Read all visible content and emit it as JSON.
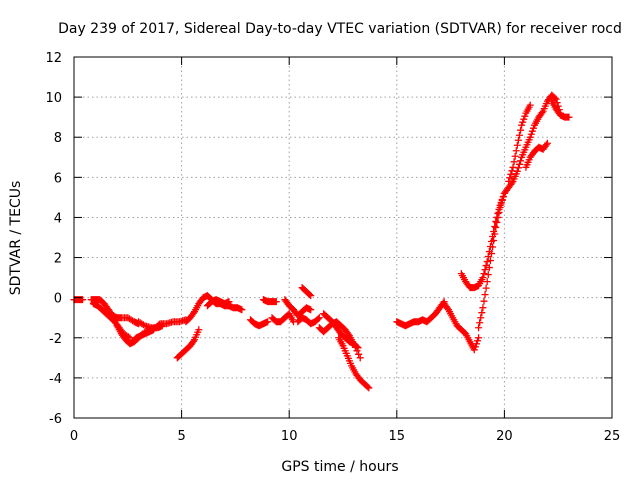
{
  "chart_data": {
    "type": "scatter",
    "title": "Day 239 of 2017, Sidereal Day-to-day VTEC variation (SDTVAR) for receiver rocd",
    "xlabel": "GPS time / hours",
    "ylabel": "SDTVAR / TECUs",
    "xlim": [
      0,
      25
    ],
    "ylim": [
      -6,
      12
    ],
    "xticks": [
      0,
      5,
      10,
      15,
      20,
      25
    ],
    "yticks": [
      -6,
      -4,
      -2,
      0,
      2,
      4,
      6,
      8,
      10,
      12
    ],
    "grid": true,
    "marker": "+",
    "color": "#ff0000",
    "series": [
      {
        "name": "s1",
        "x": [
          0.0,
          0.2,
          0.4
        ],
        "y": [
          -0.1,
          -0.1,
          -0.1
        ]
      },
      {
        "name": "s2",
        "x": [
          0.8,
          1.0,
          1.2,
          1.4,
          1.6,
          1.8,
          2.0,
          2.2,
          2.5,
          2.8,
          3.0
        ],
        "y": [
          -0.1,
          -0.1,
          -0.1,
          -0.3,
          -0.6,
          -0.9,
          -1.0,
          -1.0,
          -1.0,
          -1.2,
          -1.3
        ]
      },
      {
        "name": "s3",
        "x": [
          0.9,
          1.1,
          1.3,
          1.5,
          1.7,
          1.9,
          2.1,
          2.3,
          2.6
        ],
        "y": [
          -0.3,
          -0.4,
          -0.6,
          -0.8,
          -1.0,
          -1.2,
          -1.5,
          -1.8,
          -2.0
        ]
      },
      {
        "name": "s4",
        "x": [
          2.0,
          2.2,
          2.4,
          2.6,
          2.8,
          3.0,
          3.2,
          3.5,
          3.8,
          4.0,
          4.3,
          4.6,
          4.9,
          5.2
        ],
        "y": [
          -1.4,
          -1.8,
          -2.1,
          -2.3,
          -2.2,
          -2.0,
          -1.8,
          -1.6,
          -1.5,
          -1.3,
          -1.3,
          -1.2,
          -1.2,
          -1.1
        ]
      },
      {
        "name": "s5",
        "x": [
          2.7,
          2.9,
          3.1,
          3.3,
          3.5,
          3.7
        ],
        "y": [
          -2.2,
          -2.0,
          -1.9,
          -1.8,
          -1.7,
          -1.6
        ]
      },
      {
        "name": "s6",
        "x": [
          3.0,
          3.3,
          3.6,
          3.9,
          4.1
        ],
        "y": [
          -1.2,
          -1.4,
          -1.5,
          -1.5,
          -1.4
        ]
      },
      {
        "name": "s7",
        "x": [
          4.8,
          5.0,
          5.2,
          5.4,
          5.6,
          5.8
        ],
        "y": [
          -3.0,
          -2.8,
          -2.6,
          -2.4,
          -2.1,
          -1.6
        ]
      },
      {
        "name": "s8",
        "x": [
          5.2,
          5.4,
          5.6,
          5.8,
          6.0,
          6.2,
          6.4,
          6.6,
          6.8,
          7.0,
          7.2,
          7.4,
          7.6,
          7.8
        ],
        "y": [
          -1.2,
          -1.0,
          -0.7,
          -0.3,
          0.0,
          0.1,
          -0.1,
          -0.3,
          -0.3,
          -0.4,
          -0.4,
          -0.5,
          -0.5,
          -0.6
        ]
      },
      {
        "name": "s9",
        "x": [
          6.2,
          6.4,
          6.6,
          6.8,
          7.0,
          7.2
        ],
        "y": [
          -0.4,
          -0.2,
          -0.1,
          -0.2,
          -0.3,
          -0.2
        ]
      },
      {
        "name": "s10",
        "x": [
          8.2,
          8.4,
          8.6,
          8.8,
          9.0
        ],
        "y": [
          -1.1,
          -1.3,
          -1.4,
          -1.3,
          -1.2
        ]
      },
      {
        "name": "s11",
        "x": [
          8.8,
          9.0,
          9.2,
          9.4
        ],
        "y": [
          -0.1,
          -0.2,
          -0.2,
          -0.2
        ]
      },
      {
        "name": "s12",
        "x": [
          9.2,
          9.4,
          9.6,
          9.8,
          10.0,
          10.2
        ],
        "y": [
          -1.0,
          -1.2,
          -1.2,
          -1.0,
          -0.8,
          -1.2
        ]
      },
      {
        "name": "s13",
        "x": [
          9.8,
          10.0,
          10.2,
          10.4,
          10.6,
          10.8,
          11.0
        ],
        "y": [
          -0.1,
          -0.4,
          -0.6,
          -0.9,
          -0.7,
          -0.5,
          -0.6
        ]
      },
      {
        "name": "s14",
        "x": [
          10.6,
          10.8,
          11.0
        ],
        "y": [
          0.5,
          0.3,
          0.1
        ]
      },
      {
        "name": "s15",
        "x": [
          10.4,
          10.6,
          10.8,
          11.0,
          11.2,
          11.4
        ],
        "y": [
          -1.2,
          -1.0,
          -1.1,
          -1.3,
          -1.2,
          -1.0
        ]
      },
      {
        "name": "s16",
        "x": [
          11.4,
          11.6,
          11.8,
          12.0,
          12.2,
          12.4,
          12.6,
          12.8,
          13.0,
          13.3
        ],
        "y": [
          -1.5,
          -1.7,
          -1.5,
          -1.3,
          -1.2,
          -1.4,
          -1.6,
          -1.9,
          -2.3,
          -3.0
        ]
      },
      {
        "name": "s17",
        "x": [
          11.6,
          11.8,
          12.0,
          12.2,
          12.4,
          12.6,
          12.8,
          13.0,
          13.2
        ],
        "y": [
          -0.8,
          -1.0,
          -1.2,
          -1.5,
          -1.8,
          -2.0,
          -2.2,
          -2.3,
          -2.5
        ]
      },
      {
        "name": "s18",
        "x": [
          12.3,
          12.5,
          12.7,
          12.9,
          13.1,
          13.3,
          13.5,
          13.7
        ],
        "y": [
          -2.0,
          -2.4,
          -2.9,
          -3.4,
          -3.8,
          -4.1,
          -4.3,
          -4.5
        ]
      },
      {
        "name": "s19",
        "x": [
          15.0,
          15.2,
          15.4,
          15.6,
          15.8,
          16.0,
          16.2,
          16.4,
          16.6,
          16.8,
          17.0,
          17.2
        ],
        "y": [
          -1.2,
          -1.3,
          -1.4,
          -1.3,
          -1.2,
          -1.2,
          -1.1,
          -1.2,
          -1.0,
          -0.8,
          -0.5,
          -0.2
        ]
      },
      {
        "name": "s20",
        "x": [
          17.2,
          17.4,
          17.6,
          17.8,
          18.0,
          18.2,
          18.4,
          18.6,
          18.8
        ],
        "y": [
          -0.3,
          -0.6,
          -1.0,
          -1.4,
          -1.6,
          -1.8,
          -2.2,
          -2.6,
          -2.0
        ]
      },
      {
        "name": "s21",
        "x": [
          18.0,
          18.2,
          18.4,
          18.6,
          18.8,
          19.0,
          19.2,
          19.4,
          19.6,
          19.8,
          20.0
        ],
        "y": [
          1.2,
          0.8,
          0.5,
          0.5,
          0.6,
          1.0,
          1.8,
          2.8,
          3.8,
          4.6,
          5.2
        ]
      },
      {
        "name": "s22",
        "x": [
          18.8,
          19.0,
          19.2,
          19.4,
          19.6,
          19.8,
          20.0,
          20.2,
          20.4,
          20.6,
          20.8,
          21.0,
          21.2,
          21.4,
          21.6,
          21.8,
          22.0,
          22.2,
          22.4,
          22.6
        ],
        "y": [
          -1.5,
          -0.5,
          0.8,
          2.2,
          3.5,
          4.5,
          5.2,
          5.5,
          5.8,
          6.3,
          7.0,
          7.5,
          8.0,
          8.6,
          9.0,
          9.3,
          9.8,
          10.1,
          9.9,
          9.2
        ]
      },
      {
        "name": "s23",
        "x": [
          20.2,
          20.4,
          20.6,
          20.8,
          21.0,
          21.2
        ],
        "y": [
          5.8,
          6.5,
          7.6,
          8.6,
          9.2,
          9.6
        ]
      },
      {
        "name": "s24",
        "x": [
          21.0,
          21.2,
          21.4,
          21.6,
          21.8,
          22.0
        ],
        "y": [
          6.5,
          7.0,
          7.3,
          7.5,
          7.4,
          7.7
        ]
      },
      {
        "name": "s25",
        "x": [
          22.2,
          22.4,
          22.6,
          22.8,
          23.0
        ],
        "y": [
          9.8,
          9.4,
          9.1,
          9.0,
          9.0
        ]
      }
    ]
  }
}
